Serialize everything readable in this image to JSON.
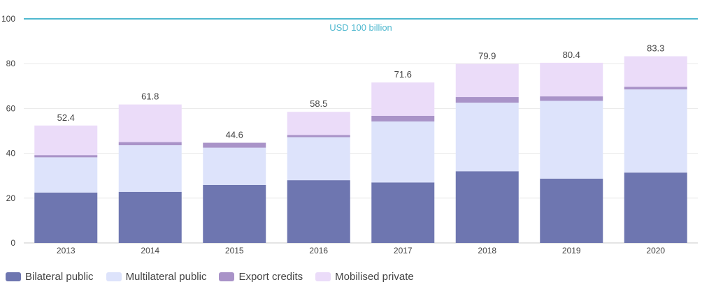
{
  "chart_data": {
    "type": "bar",
    "stacked": true,
    "categories": [
      "2013",
      "2014",
      "2015",
      "2016",
      "2017",
      "2018",
      "2019",
      "2020"
    ],
    "series": [
      {
        "name": "Bilateral public",
        "color": "#6e76b0",
        "values": [
          22.5,
          22.8,
          25.9,
          28.0,
          27.0,
          32.0,
          28.7,
          31.4
        ]
      },
      {
        "name": "Multilateral public",
        "color": "#dde3fb",
        "values": [
          15.7,
          20.8,
          16.6,
          19.2,
          27.2,
          30.6,
          34.7,
          37.1
        ]
      },
      {
        "name": "Export credits",
        "color": "#a993c8",
        "values": [
          1.0,
          1.4,
          2.2,
          1.0,
          2.5,
          2.5,
          2.0,
          1.2
        ]
      },
      {
        "name": "Mobilised private",
        "color": "#ebdcf9",
        "values": [
          13.2,
          16.8,
          0.0,
          10.3,
          14.9,
          14.8,
          15.0,
          13.6
        ]
      }
    ],
    "totals": [
      "52.4",
      "61.8",
      "44.6",
      "58.5",
      "71.6",
      "79.9",
      "80.4",
      "83.3"
    ],
    "ylim": [
      0,
      100
    ],
    "yticks": [
      "0",
      "20",
      "40",
      "60",
      "80",
      "100"
    ],
    "reference_line": {
      "value": 100,
      "label": "USD 100 billion",
      "color": "#4fb8cf"
    },
    "grid": true,
    "legend_position": "bottom-left"
  }
}
